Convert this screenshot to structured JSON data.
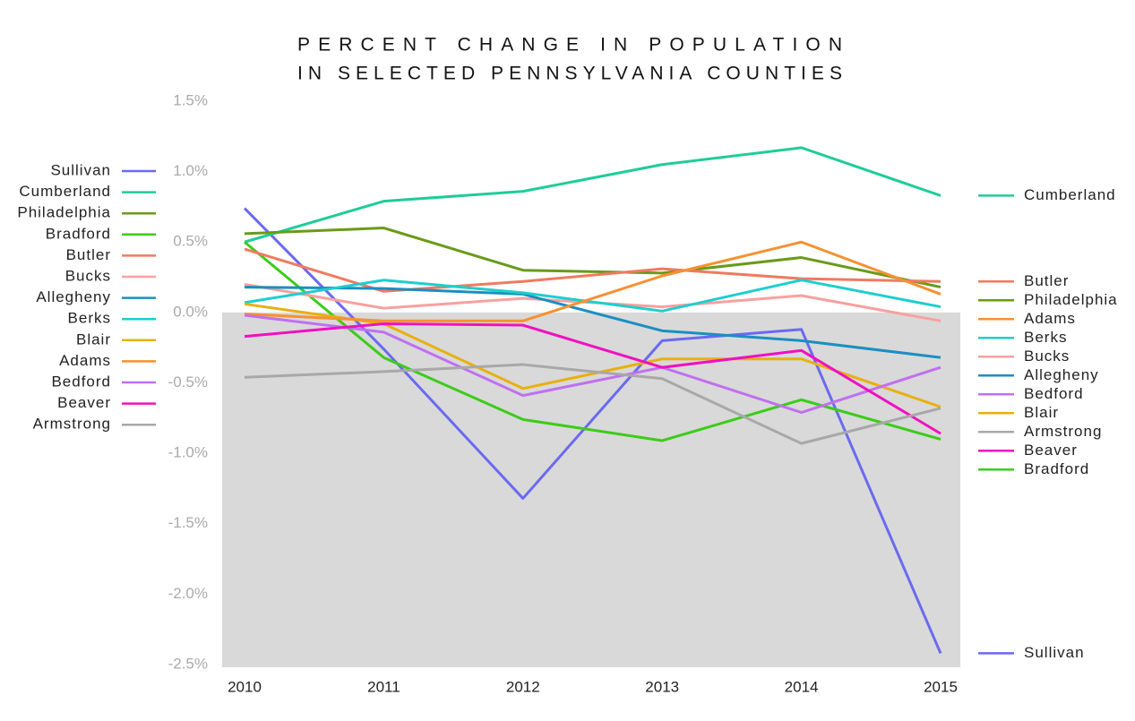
{
  "chart_data": {
    "type": "line",
    "title": [
      "PERCENT CHANGE IN POPULATION",
      "IN SELECTED PENNSYLVANIA COUNTIES"
    ],
    "categories": [
      "2010",
      "2011",
      "2012",
      "2013",
      "2014",
      "2015"
    ],
    "ylim": [
      -2.5,
      1.5
    ],
    "yticks": [
      {
        "value": 1.5,
        "label": "1.5%"
      },
      {
        "value": 1.0,
        "label": "1.0%"
      },
      {
        "value": 0.5,
        "label": "0.5%"
      },
      {
        "value": 0,
        "label": "0.0%"
      },
      {
        "value": -0.5,
        "label": "-0.5%"
      },
      {
        "value": -1.0,
        "label": "-1.0%"
      },
      {
        "value": -1.5,
        "label": "-1.5%"
      },
      {
        "value": -2.0,
        "label": "-2.0%"
      },
      {
        "value": -2.5,
        "label": "-2.5%"
      }
    ],
    "grid": false,
    "legend": "left",
    "end_labels": true,
    "negative_fill": "#d9d9d9",
    "series": [
      {
        "name": "Sullivan",
        "color": "#6a6af0",
        "values": [
          0.74,
          -0.26,
          -1.32,
          -0.2,
          -0.12,
          -2.42
        ]
      },
      {
        "name": "Cumberland",
        "color": "#1fcc99",
        "values": [
          0.5,
          0.79,
          0.86,
          1.05,
          1.17,
          0.83
        ]
      },
      {
        "name": "Philadelphia",
        "color": "#6a9a1a",
        "values": [
          0.56,
          0.6,
          0.3,
          0.28,
          0.39,
          0.18
        ]
      },
      {
        "name": "Bradford",
        "color": "#3ccc1a",
        "values": [
          0.5,
          -0.32,
          -0.76,
          -0.91,
          -0.62,
          -0.9
        ]
      },
      {
        "name": "Butler",
        "color": "#f07a60",
        "values": [
          0.45,
          0.15,
          0.22,
          0.31,
          0.24,
          0.22
        ]
      },
      {
        "name": "Bucks",
        "color": "#f8a0a0",
        "values": [
          0.2,
          0.03,
          0.1,
          0.04,
          0.12,
          -0.06
        ]
      },
      {
        "name": "Allegheny",
        "color": "#1a8fc0",
        "values": [
          0.18,
          0.17,
          0.13,
          -0.13,
          -0.2,
          -0.32
        ]
      },
      {
        "name": "Berks",
        "color": "#1ecece",
        "values": [
          0.07,
          0.23,
          0.14,
          0.01,
          0.23,
          0.04
        ]
      },
      {
        "name": "Blair",
        "color": "#e8b010",
        "values": [
          0.06,
          -0.08,
          -0.54,
          -0.33,
          -0.33,
          -0.67
        ]
      },
      {
        "name": "Adams",
        "color": "#f89030",
        "values": [
          -0.01,
          -0.06,
          -0.06,
          0.26,
          0.5,
          0.13
        ]
      },
      {
        "name": "Bedford",
        "color": "#c070f0",
        "values": [
          -0.02,
          -0.14,
          -0.59,
          -0.39,
          -0.71,
          -0.39
        ]
      },
      {
        "name": "Beaver",
        "color": "#f010c0",
        "values": [
          -0.17,
          -0.08,
          -0.09,
          -0.39,
          -0.27,
          -0.86
        ]
      },
      {
        "name": "Armstrong",
        "color": "#a8a8a8",
        "values": [
          -0.46,
          -0.42,
          -0.37,
          -0.47,
          -0.93,
          -0.68
        ]
      }
    ]
  }
}
